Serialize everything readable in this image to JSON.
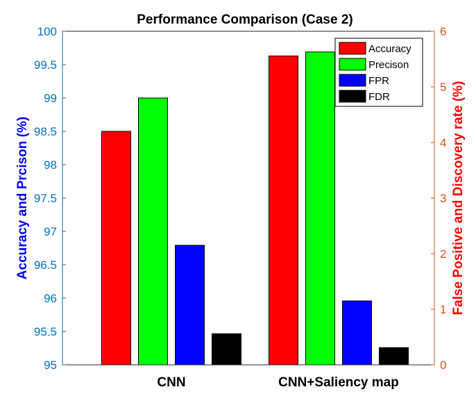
{
  "chart_data": {
    "type": "bar",
    "title": "Performance Comparison  (Case 2)",
    "categories": [
      "CNN",
      "CNN+Saliency map"
    ],
    "series": [
      {
        "name": "Accuracy",
        "axis": "left",
        "color": "#ff0000",
        "values": [
          98.5,
          99.63
        ]
      },
      {
        "name": "Precison",
        "axis": "left",
        "color": "#00ff00",
        "values": [
          99.0,
          99.69
        ]
      },
      {
        "name": "FPR",
        "axis": "right",
        "color": "#0000ff",
        "values": [
          2.15,
          1.15
        ]
      },
      {
        "name": "FDR",
        "axis": "right",
        "color": "#000000",
        "values": [
          0.56,
          0.31
        ]
      }
    ],
    "ylabel_left": "Accuracy and Prcison (%)",
    "ylabel_right": "False Positive and Discovery rate (%)",
    "ylim_left": [
      95,
      100
    ],
    "ylim_right": [
      0,
      6
    ],
    "yticks_left": [
      "95",
      "95.5",
      "96",
      "96.5",
      "97",
      "97.5",
      "98",
      "98.5",
      "99",
      "99.5",
      "100"
    ],
    "yticks_right": [
      "0",
      "1",
      "2",
      "3",
      "4",
      "5",
      "6"
    ],
    "grid": false,
    "legend_position": "top-right",
    "colors": {
      "left_axis": "#0072bd",
      "right_axis": "#d95319",
      "left_label": "#0000ff",
      "right_label": "#ff0000"
    }
  }
}
